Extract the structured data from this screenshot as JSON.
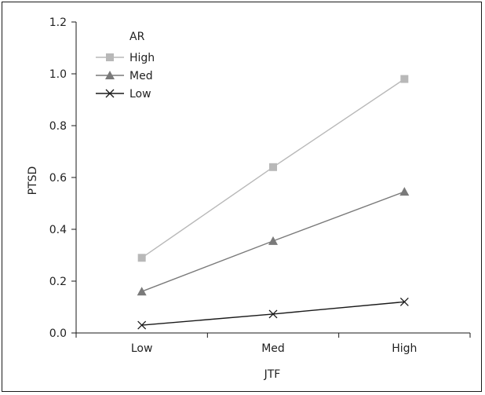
{
  "chart_data": {
    "type": "line",
    "title": "",
    "xlabel": "JTF",
    "ylabel": "PTSD",
    "categories": [
      "Low",
      "Med",
      "High"
    ],
    "ylim": [
      0.0,
      1.2
    ],
    "yticks": [
      "0.0",
      "0.2",
      "0.4",
      "0.6",
      "0.8",
      "1.0",
      "1.2"
    ],
    "grid": false,
    "legend": {
      "title": "AR",
      "placement": "top-left"
    },
    "series": [
      {
        "name": "High",
        "marker": "square",
        "color": "#b8b8b8",
        "values": [
          0.29,
          0.64,
          0.98
        ]
      },
      {
        "name": "Med",
        "marker": "triangle",
        "color": "#7a7a7a",
        "values": [
          0.16,
          0.355,
          0.545
        ]
      },
      {
        "name": "Low",
        "marker": "x",
        "color": "#1a1a1a",
        "values": [
          0.03,
          0.073,
          0.12
        ]
      }
    ]
  }
}
